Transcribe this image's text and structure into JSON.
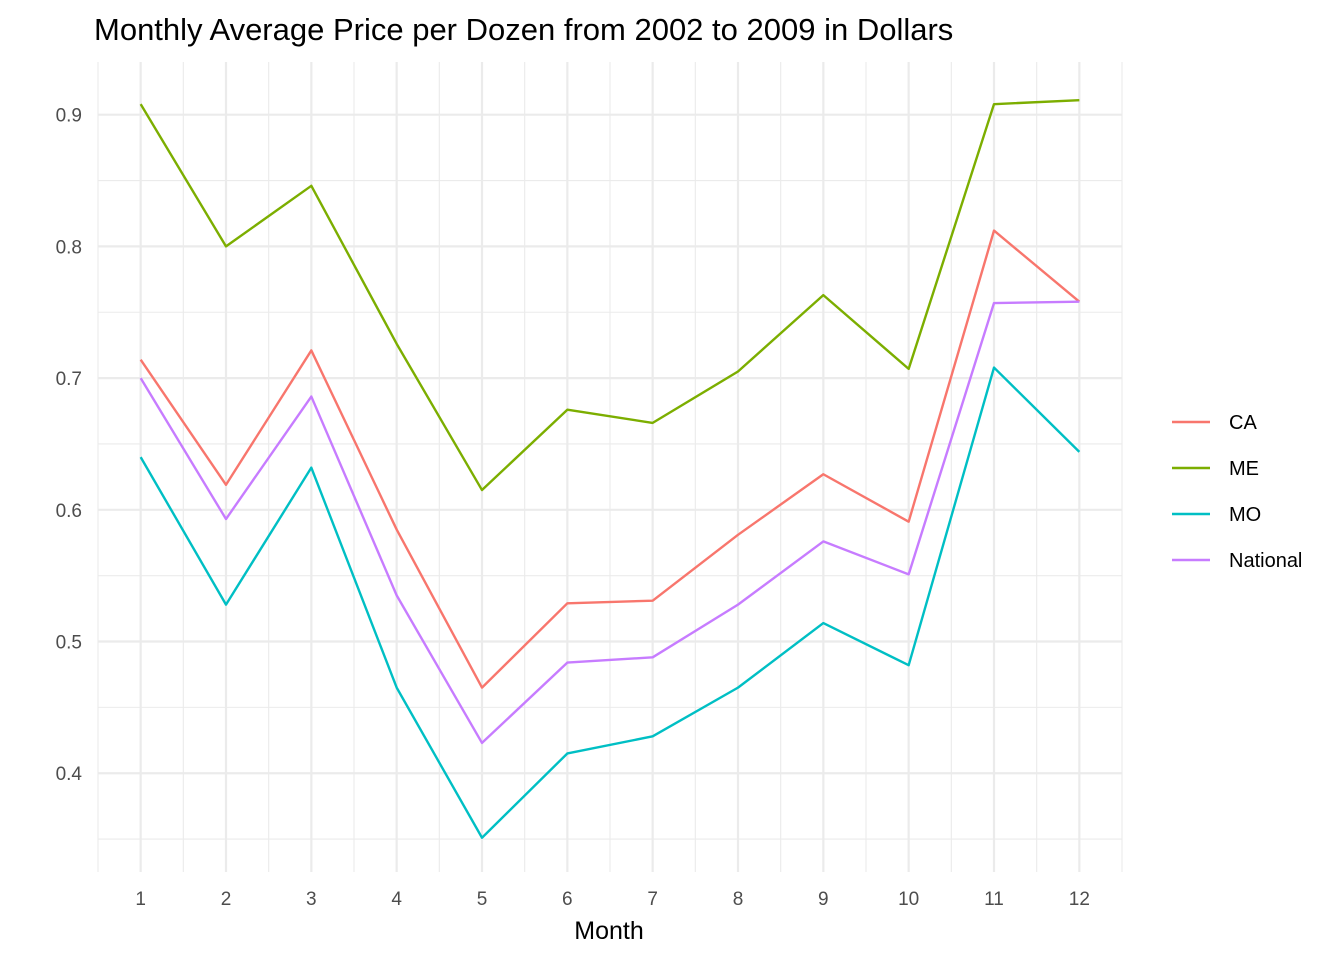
{
  "chart_data": {
    "type": "line",
    "title": "Monthly Average Price per Dozen from 2002 to 2009 in Dollars",
    "xlabel": "Month",
    "ylabel": "",
    "x": [
      1,
      2,
      3,
      4,
      5,
      6,
      7,
      8,
      9,
      10,
      11,
      12
    ],
    "xlim": [
      0.5,
      12.5
    ],
    "ylim": [
      0.325,
      0.94
    ],
    "y_ticks": [
      "0.4",
      "0.5",
      "0.6",
      "0.7",
      "0.8",
      "0.9"
    ],
    "x_ticks": [
      "1",
      "2",
      "3",
      "4",
      "5",
      "6",
      "7",
      "8",
      "9",
      "10",
      "11",
      "12"
    ],
    "grid": true,
    "legend_position": "right",
    "series": [
      {
        "name": "CA",
        "color": "#F8766D",
        "values": [
          0.714,
          0.619,
          0.721,
          0.585,
          0.465,
          0.529,
          0.531,
          0.581,
          0.627,
          0.591,
          0.812,
          0.758
        ]
      },
      {
        "name": "ME",
        "color": "#7CAE00",
        "values": [
          0.908,
          0.8,
          0.846,
          0.726,
          0.615,
          0.676,
          0.666,
          0.705,
          0.763,
          0.707,
          0.908,
          0.911
        ]
      },
      {
        "name": "MO",
        "color": "#00BFC4",
        "values": [
          0.64,
          0.528,
          0.632,
          0.465,
          0.351,
          0.415,
          0.428,
          0.465,
          0.514,
          0.482,
          0.708,
          0.644
        ]
      },
      {
        "name": "National",
        "color": "#C77CFF",
        "values": [
          0.7,
          0.593,
          0.686,
          0.535,
          0.423,
          0.484,
          0.488,
          0.528,
          0.576,
          0.551,
          0.757,
          0.758
        ]
      }
    ]
  }
}
